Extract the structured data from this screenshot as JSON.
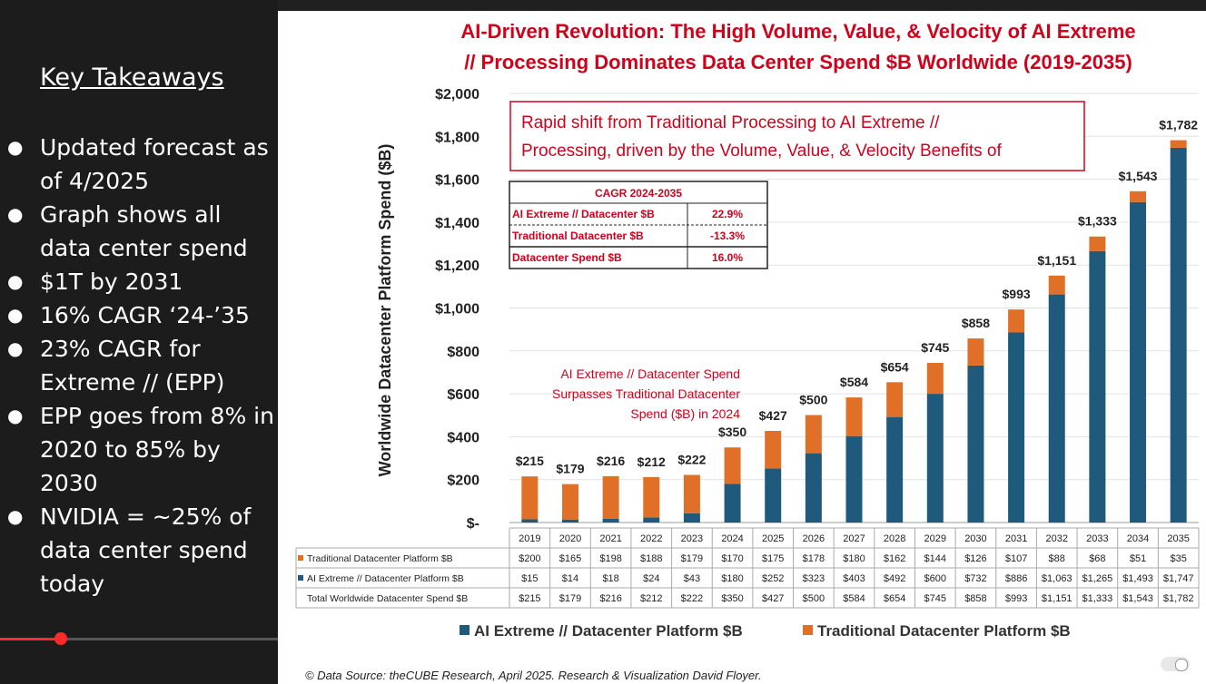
{
  "sidebar": {
    "heading": "Key Takeaways",
    "bullets": [
      "Updated forecast as of 4/2025",
      "Graph shows all data center spend",
      "$1T by 2031",
      "16% CAGR ‘24-’35",
      "23% CAGR for Extreme // (EPP)",
      "EPP goes from 8% in 2020 to 85% by 2030",
      "NVIDIA = ~25% of data center spend today"
    ]
  },
  "player": {
    "progress": 0.22
  },
  "slide": {
    "title_line1": "AI-Driven Revolution: The High Volume, Value, & Velocity of AI Extreme",
    "title_line2": "// Processing Dominates Data Center Spend $B Worldwide (2019-2035)",
    "callout_line1": "Rapid shift from Traditional Processing to AI Extreme //",
    "callout_line2": "Processing, driven by the Volume, Value, & Velocity Benefits of",
    "cagr_table": {
      "header": "CAGR 2024-2035",
      "rows": [
        {
          "label": "AI Extreme // Datacenter $B",
          "value": "22.9%"
        },
        {
          "label": "Traditional Datacenter $B",
          "value": "-13.3%"
        },
        {
          "label": "Datacenter Spend $B",
          "value": "16.0%"
        }
      ]
    },
    "annotation_lines": [
      "AI Extreme // Datacenter Spend",
      "Surpasses Traditional Datacenter",
      "Spend ($B) in 2024"
    ],
    "source": "© Data Source: theCUBE Research, April 2025. Research & Visualization David Floyer."
  },
  "chart_data": {
    "type": "bar",
    "stacked": true,
    "ylabel": "Worldwide Datacenter Platform Spend ($B)",
    "ylim": [
      0,
      2000
    ],
    "yticks": [
      "$-",
      "$200",
      "$400",
      "$600",
      "$800",
      "$1,000",
      "$1,200",
      "$1,400",
      "$1,600",
      "$1,800",
      "$2,000"
    ],
    "categories": [
      "2019",
      "2020",
      "2021",
      "2022",
      "2023",
      "2024",
      "2025",
      "2026",
      "2027",
      "2028",
      "2029",
      "2030",
      "2031",
      "2032",
      "2033",
      "2034",
      "2035"
    ],
    "series": [
      {
        "name": "AI Extreme // Datacenter Platform $B",
        "table_label": "AI Extreme // Datacenter Platform $B",
        "color": "#1f5a7d",
        "values": [
          15,
          14,
          18,
          24,
          43,
          180,
          252,
          323,
          403,
          492,
          600,
          732,
          886,
          1063,
          1265,
          1493,
          1747
        ],
        "labels": [
          "$15",
          "$14",
          "$18",
          "$24",
          "$43",
          "$180",
          "$252",
          "$323",
          "$403",
          "$492",
          "$600",
          "$732",
          "$886",
          "$1,063",
          "$1,265",
          "$1,493",
          "$1,747"
        ]
      },
      {
        "name": "Traditional Datacenter Platform $B",
        "table_label": "Traditional Datacenter Platform $B",
        "color": "#e07028",
        "values": [
          200,
          165,
          198,
          188,
          179,
          170,
          175,
          178,
          180,
          162,
          144,
          126,
          107,
          88,
          68,
          51,
          35
        ],
        "labels": [
          "$200",
          "$165",
          "$198",
          "$188",
          "$179",
          "$170",
          "$175",
          "$178",
          "$180",
          "$162",
          "$144",
          "$126",
          "$107",
          "$88",
          "$68",
          "$51",
          "$35"
        ]
      }
    ],
    "totals_label": "Total Worldwide Datacenter Spend $B",
    "totals": [
      "$215",
      "$179",
      "$216",
      "$212",
      "$222",
      "$350",
      "$427",
      "$500",
      "$584",
      "$654",
      "$745",
      "$858",
      "$993",
      "$1,151",
      "$1,333",
      "$1,543",
      "$1,782"
    ],
    "legend": [
      "AI Extreme // Datacenter Platform $B",
      "Traditional Datacenter Platform $B"
    ]
  }
}
